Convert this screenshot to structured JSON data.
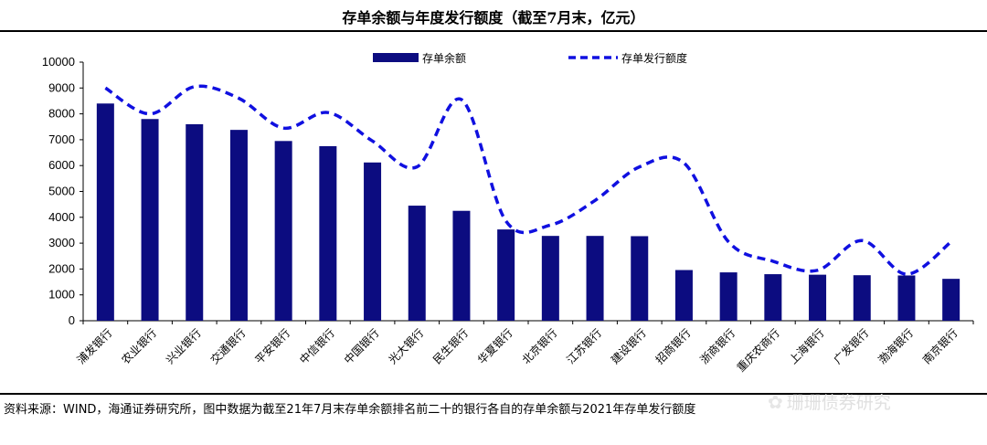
{
  "title": "存单余额与年度发行额度（截至7月末，亿元）",
  "source": "资料来源：WIND，海通证券研究所，图中数据为截至21年7月末存单余额排名前二十的银行各自的存单余额与2021年存单发行额度",
  "watermark": "珊珊债券研究",
  "chart_data": {
    "type": "bar",
    "categories": [
      "浦发银行",
      "农业银行",
      "兴业银行",
      "交通银行",
      "平安银行",
      "中信银行",
      "中国银行",
      "光大银行",
      "民生银行",
      "华夏银行",
      "北京银行",
      "江苏银行",
      "建设银行",
      "招商银行",
      "浙商银行",
      "重庆农商行",
      "上海银行",
      "广发银行",
      "渤海银行",
      "南京银行"
    ],
    "series": [
      {
        "name": "存单余额",
        "type": "bar",
        "color": "#0c0c80",
        "values": [
          8400,
          7800,
          7600,
          7380,
          6950,
          6750,
          6120,
          4450,
          4250,
          3530,
          3280,
          3280,
          3270,
          1960,
          1870,
          1800,
          1780,
          1760,
          1750,
          1620
        ]
      },
      {
        "name": "存单发行额度",
        "type": "line",
        "style": "dashed",
        "color": "#1010e0",
        "values": [
          9000,
          8000,
          9050,
          8600,
          7450,
          8050,
          6950,
          5950,
          8550,
          3850,
          3700,
          4650,
          5950,
          6100,
          3050,
          2300,
          1950,
          3100,
          1800,
          3050
        ]
      }
    ],
    "ylim": [
      0,
      10000
    ],
    "yticks": [
      "0",
      "1000",
      "2000",
      "3000",
      "4000",
      "5000",
      "6000",
      "7000",
      "8000",
      "9000",
      "10000"
    ],
    "legend": "top-center",
    "grid": false
  }
}
